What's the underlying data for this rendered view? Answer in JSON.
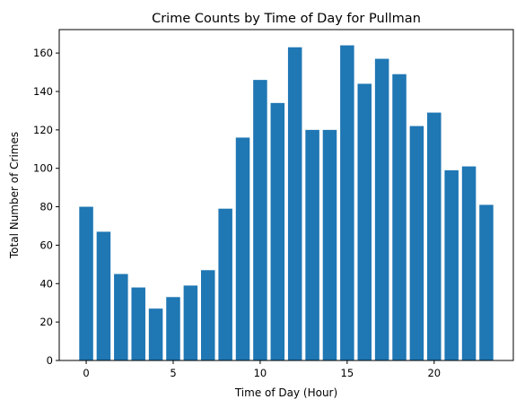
{
  "chart_data": {
    "type": "bar",
    "title": "Crime Counts by Time of Day for Pullman",
    "xlabel": "Time of Day (Hour)",
    "ylabel": "Total Number of Crimes",
    "x": [
      0,
      1,
      2,
      3,
      4,
      5,
      6,
      7,
      8,
      9,
      10,
      11,
      12,
      13,
      14,
      15,
      16,
      17,
      18,
      19,
      20,
      21,
      22,
      23
    ],
    "values": [
      80,
      67,
      45,
      38,
      27,
      33,
      39,
      47,
      79,
      116,
      146,
      134,
      163,
      120,
      120,
      164,
      144,
      157,
      149,
      122,
      129,
      99,
      101,
      81
    ],
    "xlim": [
      -1.55,
      24.55
    ],
    "ylim": [
      0,
      172.2
    ],
    "xticks": [
      0,
      5,
      10,
      15,
      20
    ],
    "yticks": [
      0,
      20,
      40,
      60,
      80,
      100,
      120,
      140,
      160
    ],
    "bar_color": "#1f77b4",
    "grid": false
  }
}
